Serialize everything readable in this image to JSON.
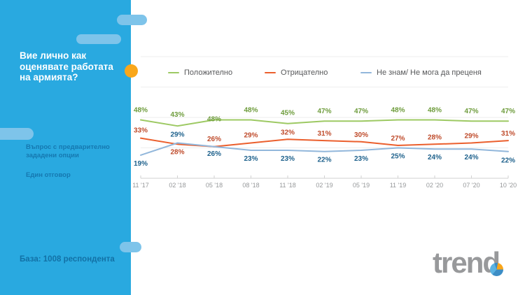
{
  "sidebar": {
    "title": "Вие лично как оценявате работата на армията?",
    "question_type": "Въпрос с предварително зададени опции",
    "answer_note": "Един отговор",
    "base_note": "База: 1008 респондента",
    "bg_color": "#29A9E0",
    "shape_color": "#7EC4EA",
    "accent_dot_color": "#F9A71B",
    "subtext_color": "#1578B0",
    "base_text_color": "#1271A6"
  },
  "logo": {
    "text": "trend",
    "color": "#98999B",
    "pie_colors": {
      "blue": "#3C8DC5",
      "light_blue": "#5BB3E2",
      "orange": "#F9A51A"
    }
  },
  "chart_data": {
    "type": "line",
    "title": "",
    "xlabel": "",
    "ylabel": "",
    "value_suffix": "%",
    "ylim": [
      0,
      100
    ],
    "grid": "horizontal, every 25%, faint",
    "legend_position": "top",
    "categories": [
      "11 '17",
      "02 '18",
      "05 '18",
      "08 '18",
      "11 '18",
      "02 '19",
      "05 '19",
      "11 '19",
      "02 '20",
      "07 '20",
      "10 '20"
    ],
    "series": [
      {
        "name": "Положително",
        "color": "#9DC963",
        "label_color": "#6E9C3C",
        "values": [
          48,
          43,
          48,
          48,
          45,
          47,
          47,
          48,
          48,
          47,
          47
        ],
        "label_dy": [
          -11,
          -13,
          2,
          -11,
          -12,
          -11,
          -11,
          -11,
          -11,
          -11,
          -11
        ]
      },
      {
        "name": "Отрицателно",
        "color": "#EB5F2D",
        "label_color": "#BF4B2B",
        "values": [
          33,
          28,
          26,
          29,
          32,
          31,
          30,
          27,
          28,
          29,
          31
        ],
        "label_dy": [
          -8,
          14,
          -8,
          -8,
          -7,
          -7,
          -7,
          -7,
          -7,
          -7,
          -7
        ]
      },
      {
        "name": "Не знам/ Не мога да преценя",
        "color": "#92B7DB",
        "label_color": "#1E618C",
        "values": [
          19,
          29,
          26,
          23,
          23,
          22,
          23,
          25,
          24,
          24,
          22
        ],
        "label_dy": [
          15,
          -9,
          13,
          15,
          15,
          15,
          15,
          15,
          15,
          15,
          16
        ]
      }
    ],
    "axis_color": "#D2D2D2",
    "gridline_color": "#EEEEEE",
    "tick_label_color": "#96989A"
  }
}
